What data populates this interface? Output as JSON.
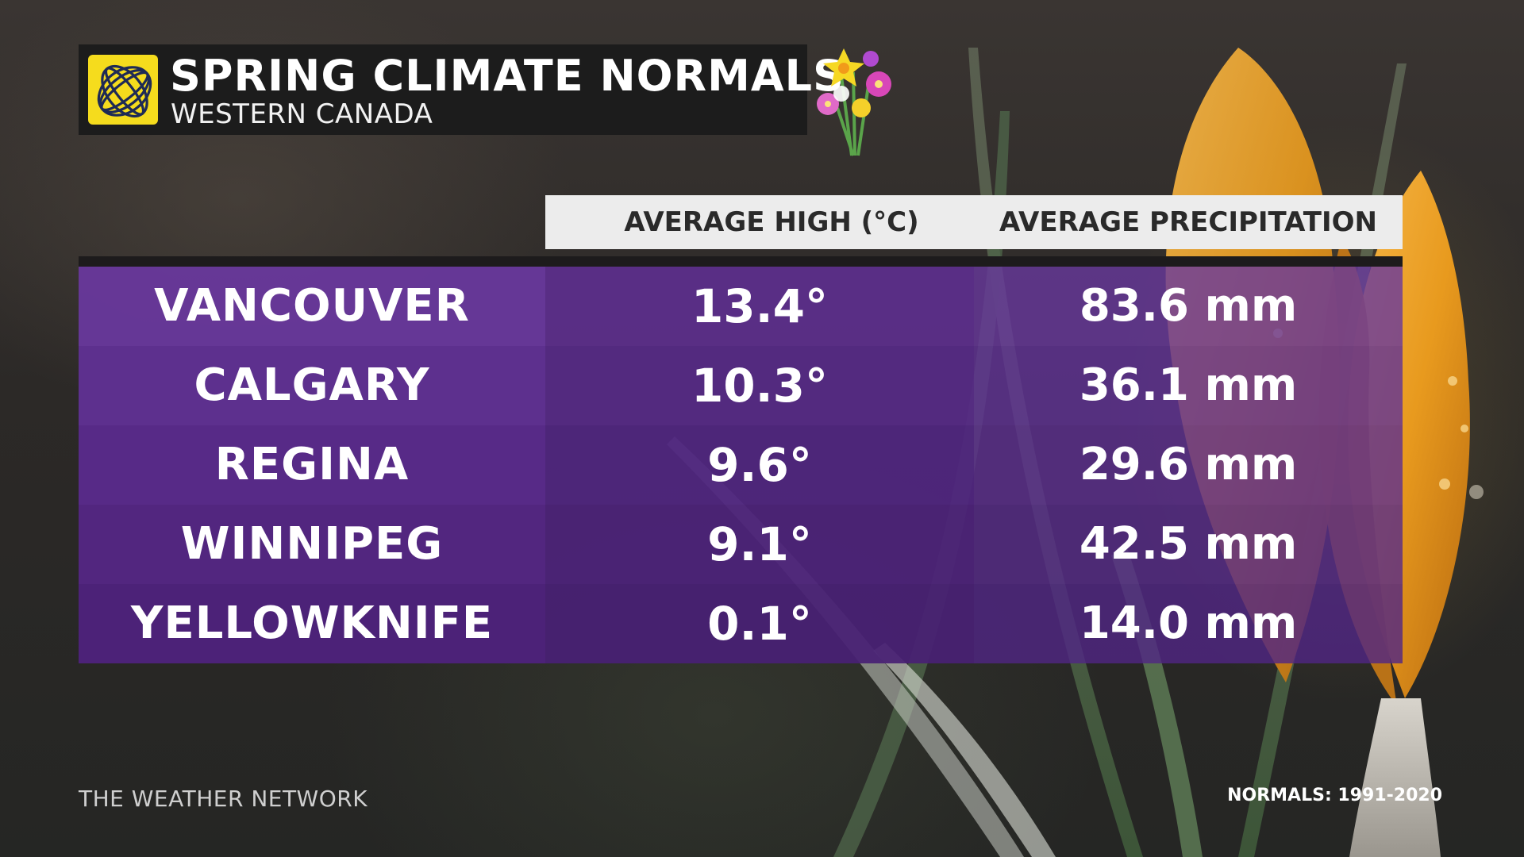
{
  "title": {
    "main": "SPRING CLIMATE NORMALS",
    "subtitle": "WESTERN CANADA"
  },
  "columns": {
    "high": "AVERAGE HIGH (°C)",
    "precip": "AVERAGE PRECIPITATION"
  },
  "rows": [
    {
      "city": "VANCOUVER",
      "high": "13.4°",
      "precip": "83.6 mm"
    },
    {
      "city": "CALGARY",
      "high": "10.3°",
      "precip": "36.1 mm"
    },
    {
      "city": "REGINA",
      "high": "9.6°",
      "precip": "29.6 mm"
    },
    {
      "city": "WINNIPEG",
      "high": "9.1°",
      "precip": "42.5 mm"
    },
    {
      "city": "YELLOWKNIFE",
      "high": "0.1°",
      "precip": "14.0 mm"
    }
  ],
  "footer": {
    "brand": "THE WEATHER NETWORK",
    "normals_period": "NORMALS: 1991-2020"
  },
  "colors": {
    "logo_yellow": "#f5dc1d",
    "table_purple": "#5c2e8c",
    "crocus_orange": "#f0a020"
  },
  "icons": {
    "logo": "weather-network-globe-logo",
    "decoration": "spring-flower-bouquet-icon"
  }
}
